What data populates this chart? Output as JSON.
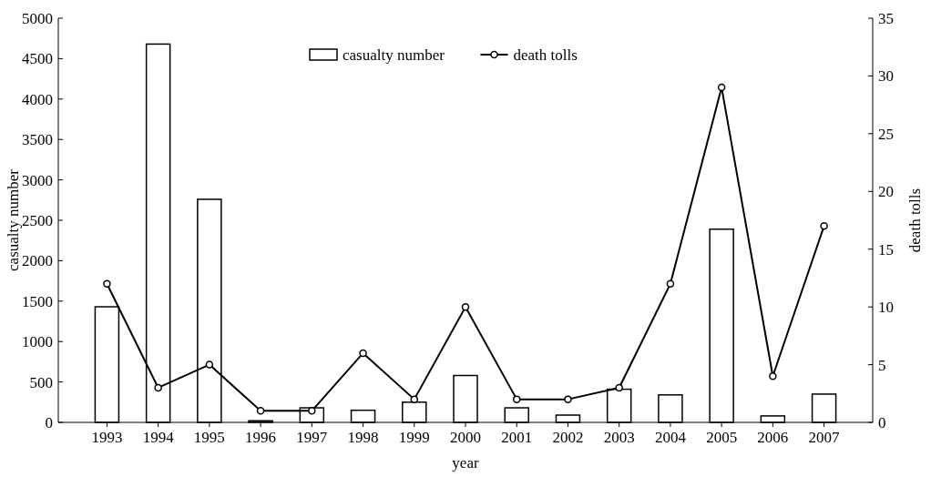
{
  "chart_data": {
    "type": "bar",
    "xlabel": "year",
    "ylabel": "casualty number",
    "y2label": "death tolls",
    "categories": [
      "1993",
      "1994",
      "1995",
      "1996",
      "1997",
      "1998",
      "1999",
      "2000",
      "2001",
      "2002",
      "2003",
      "2004",
      "2005",
      "2006",
      "2007"
    ],
    "series": [
      {
        "name": "casualty number",
        "color": "#ffffff",
        "values": [
          1430,
          4680,
          2760,
          20,
          180,
          150,
          250,
          580,
          180,
          90,
          410,
          340,
          2390,
          80,
          350
        ]
      },
      {
        "name": "death tolls",
        "type": "line",
        "axis": "y2",
        "color": "#000000",
        "marker": "circle",
        "values": [
          12,
          3,
          5,
          1,
          1,
          6,
          2,
          10,
          2,
          2,
          3,
          12,
          29,
          4,
          17
        ]
      }
    ],
    "ylim": [
      0,
      5000
    ],
    "yticks": [
      0,
      500,
      1000,
      1500,
      2000,
      2500,
      3000,
      3500,
      4000,
      4500,
      5000
    ],
    "y2lim": [
      0,
      35
    ],
    "y2ticks": [
      0,
      5,
      10,
      15,
      20,
      25,
      30,
      35
    ],
    "legend": "top",
    "grid": false
  }
}
